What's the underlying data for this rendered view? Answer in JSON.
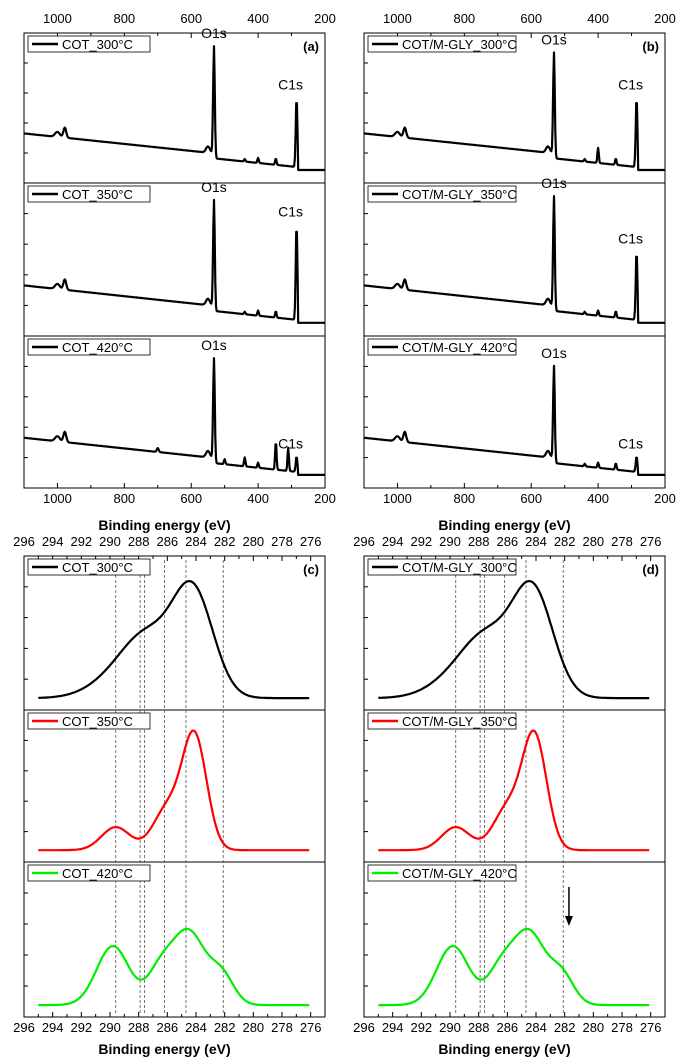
{
  "chart_data": [
    {
      "panel": "(a)",
      "type": "line",
      "xlabel": "Binding energy (eV)",
      "x_ticks": [
        1000,
        800,
        600,
        400,
        200
      ],
      "xlim": [
        1100,
        200
      ],
      "series": [
        {
          "name": "COT_300°C",
          "color": "#000000",
          "peaks": [
            {
              "label": "O1s",
              "x": 532
            },
            {
              "label": "C1s",
              "x": 285
            }
          ]
        },
        {
          "name": "COT_350°C",
          "color": "#000000",
          "peaks": [
            {
              "label": "O1s",
              "x": 532
            },
            {
              "label": "C1s",
              "x": 285
            }
          ]
        },
        {
          "name": "COT_420°C",
          "color": "#000000",
          "peaks": [
            {
              "label": "O1s",
              "x": 532
            },
            {
              "label": "C1s",
              "x": 285
            }
          ]
        }
      ]
    },
    {
      "panel": "(b)",
      "type": "line",
      "xlabel": "Binding energy (eV)",
      "x_ticks": [
        1000,
        800,
        600,
        400,
        200
      ],
      "xlim": [
        1100,
        200
      ],
      "series": [
        {
          "name": "COT/M-GLY_300°C",
          "color": "#000000",
          "peaks": [
            {
              "label": "O1s",
              "x": 532
            },
            {
              "label": "C1s",
              "x": 285
            }
          ]
        },
        {
          "name": "COT/M-GLY_350°C",
          "color": "#000000",
          "peaks": [
            {
              "label": "O1s",
              "x": 532
            },
            {
              "label": "C1s",
              "x": 285
            }
          ]
        },
        {
          "name": "COT/M-GLY_420°C",
          "color": "#000000",
          "peaks": [
            {
              "label": "O1s",
              "x": 532
            },
            {
              "label": "C1s",
              "x": 285
            }
          ]
        }
      ]
    },
    {
      "panel": "(c)",
      "type": "line",
      "xlabel": "Binding energy (eV)",
      "x_ticks": [
        296,
        294,
        292,
        290,
        288,
        286,
        284,
        282,
        280,
        278,
        276
      ],
      "xlim": [
        296,
        275
      ],
      "reference_lines": [
        289.6,
        287.9,
        287.6,
        286.2,
        284.7,
        282.1
      ],
      "series": [
        {
          "name": "COT_300°C",
          "color": "#000000"
        },
        {
          "name": "COT_350°C",
          "color": "#ff0000"
        },
        {
          "name": "COT_420°C",
          "color": "#00ee00"
        }
      ]
    },
    {
      "panel": "(d)",
      "type": "line",
      "xlabel": "Binding energy (eV)",
      "x_ticks": [
        296,
        294,
        292,
        290,
        288,
        286,
        284,
        282,
        280,
        278,
        276
      ],
      "xlim": [
        296,
        275
      ],
      "reference_lines": [
        289.6,
        287.9,
        287.6,
        286.2,
        284.7,
        282.1
      ],
      "arrow_at": 281.7,
      "series": [
        {
          "name": "COT/M-GLY_300°C",
          "color": "#000000"
        },
        {
          "name": "COT/M-GLY_350°C",
          "color": "#ff0000"
        },
        {
          "name": "COT/M-GLY_420°C",
          "color": "#00ee00"
        }
      ]
    }
  ]
}
